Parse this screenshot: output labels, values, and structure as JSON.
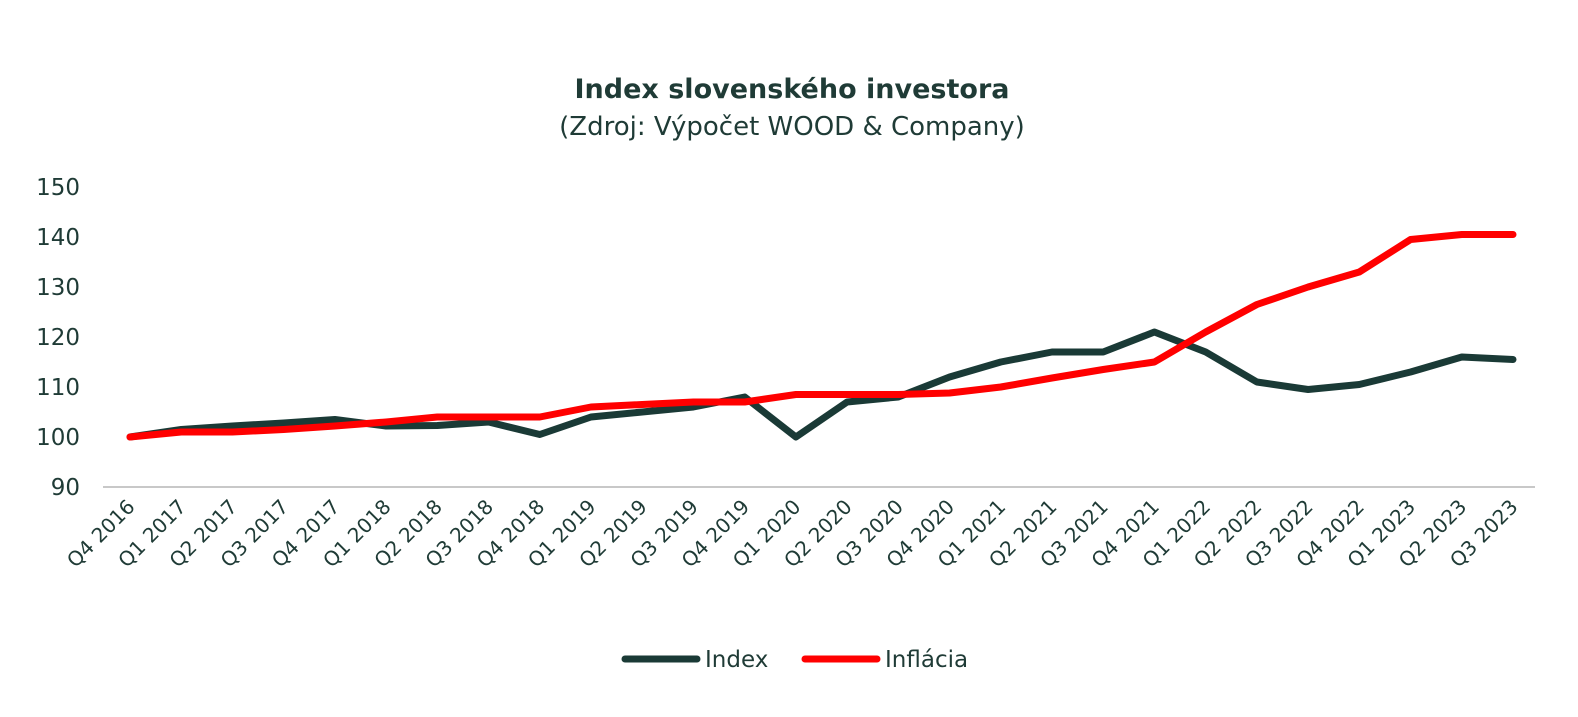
{
  "chart_data": {
    "type": "line",
    "title": "Index slovenského investora",
    "subtitle": "(Zdroj: Výpočet WOOD & Company)",
    "categories": [
      "Q4 2016",
      "Q1 2017",
      "Q2 2017",
      "Q3 2017",
      "Q4 2017",
      "Q1 2018",
      "Q2 2018",
      "Q3 2018",
      "Q4 2018",
      "Q1 2019",
      "Q2 2019",
      "Q3 2019",
      "Q4 2019",
      "Q1 2020",
      "Q2 2020",
      "Q3 2020",
      "Q4 2020",
      "Q1 2021",
      "Q2 2021",
      "Q3 2021",
      "Q4 2021",
      "Q1 2022",
      "Q2 2022",
      "Q3 2022",
      "Q4 2022",
      "Q1 2023",
      "Q2 2023",
      "Q3 2023"
    ],
    "series": [
      {
        "name": "Index",
        "color": "#1a3a36",
        "values": [
          100,
          101.5,
          102.2,
          102.8,
          103.5,
          102.2,
          102.3,
          103,
          100.5,
          104,
          105,
          106,
          108,
          100,
          107,
          108,
          112,
          115,
          117,
          117,
          121,
          117,
          111,
          109.5,
          110.5,
          113,
          116,
          115.5
        ]
      },
      {
        "name": "Inflácia",
        "color": "#ff0000",
        "values": [
          100,
          101,
          101,
          101.5,
          102.2,
          103,
          104,
          104,
          104,
          106,
          106.5,
          107,
          107,
          108.5,
          108.5,
          108.5,
          108.8,
          110,
          111.8,
          113.5,
          115,
          121,
          126.5,
          130,
          133,
          139.5,
          140.5,
          140.5
        ]
      }
    ],
    "ylim": [
      90,
      150
    ],
    "yticks": [
      90,
      100,
      110,
      120,
      130,
      140,
      150
    ],
    "grid": false,
    "legend": "bottom"
  }
}
